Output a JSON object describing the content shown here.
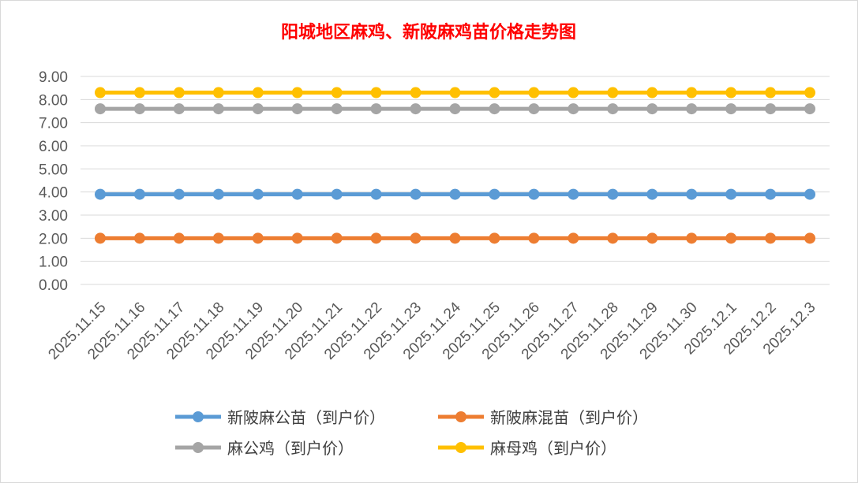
{
  "chart_data": {
    "type": "line",
    "title": "阳城地区麻鸡、新陂麻鸡苗价格走势图",
    "xlabel": "",
    "ylabel": "",
    "ylim": [
      0,
      9
    ],
    "yticks": [
      "0.00",
      "1.00",
      "2.00",
      "3.00",
      "4.00",
      "5.00",
      "6.00",
      "7.00",
      "8.00",
      "9.00"
    ],
    "grid": true,
    "legend_position": "bottom",
    "categories": [
      "2025.11.15",
      "2025.11.16",
      "2025.11.17",
      "2025.11.18",
      "2025.11.19",
      "2025.11.20",
      "2025.11.21",
      "2025.11.22",
      "2025.11.23",
      "2025.11.24",
      "2025.11.25",
      "2025.11.26",
      "2025.11.27",
      "2025.11.28",
      "2025.11.29",
      "2025.11.30",
      "2025.12.1",
      "2025.12.2",
      "2025.12.3"
    ],
    "series": [
      {
        "name": "新陂麻公苗（到户价）",
        "color": "#5b9bd5",
        "values": [
          3.9,
          3.9,
          3.9,
          3.9,
          3.9,
          3.9,
          3.9,
          3.9,
          3.9,
          3.9,
          3.9,
          3.9,
          3.9,
          3.9,
          3.9,
          3.9,
          3.9,
          3.9,
          3.9
        ]
      },
      {
        "name": "新陂麻混苗（到户价）",
        "color": "#ed7d31",
        "values": [
          2.0,
          2.0,
          2.0,
          2.0,
          2.0,
          2.0,
          2.0,
          2.0,
          2.0,
          2.0,
          2.0,
          2.0,
          2.0,
          2.0,
          2.0,
          2.0,
          2.0,
          2.0,
          2.0
        ]
      },
      {
        "name": "麻公鸡（到户价）",
        "color": "#a5a5a5",
        "values": [
          7.6,
          7.6,
          7.6,
          7.6,
          7.6,
          7.6,
          7.6,
          7.6,
          7.6,
          7.6,
          7.6,
          7.6,
          7.6,
          7.6,
          7.6,
          7.6,
          7.6,
          7.6,
          7.6
        ]
      },
      {
        "name": "麻母鸡（到户价）",
        "color": "#ffc000",
        "values": [
          8.3,
          8.3,
          8.3,
          8.3,
          8.3,
          8.3,
          8.3,
          8.3,
          8.3,
          8.3,
          8.3,
          8.3,
          8.3,
          8.3,
          8.3,
          8.3,
          8.3,
          8.3,
          8.3
        ]
      }
    ]
  }
}
